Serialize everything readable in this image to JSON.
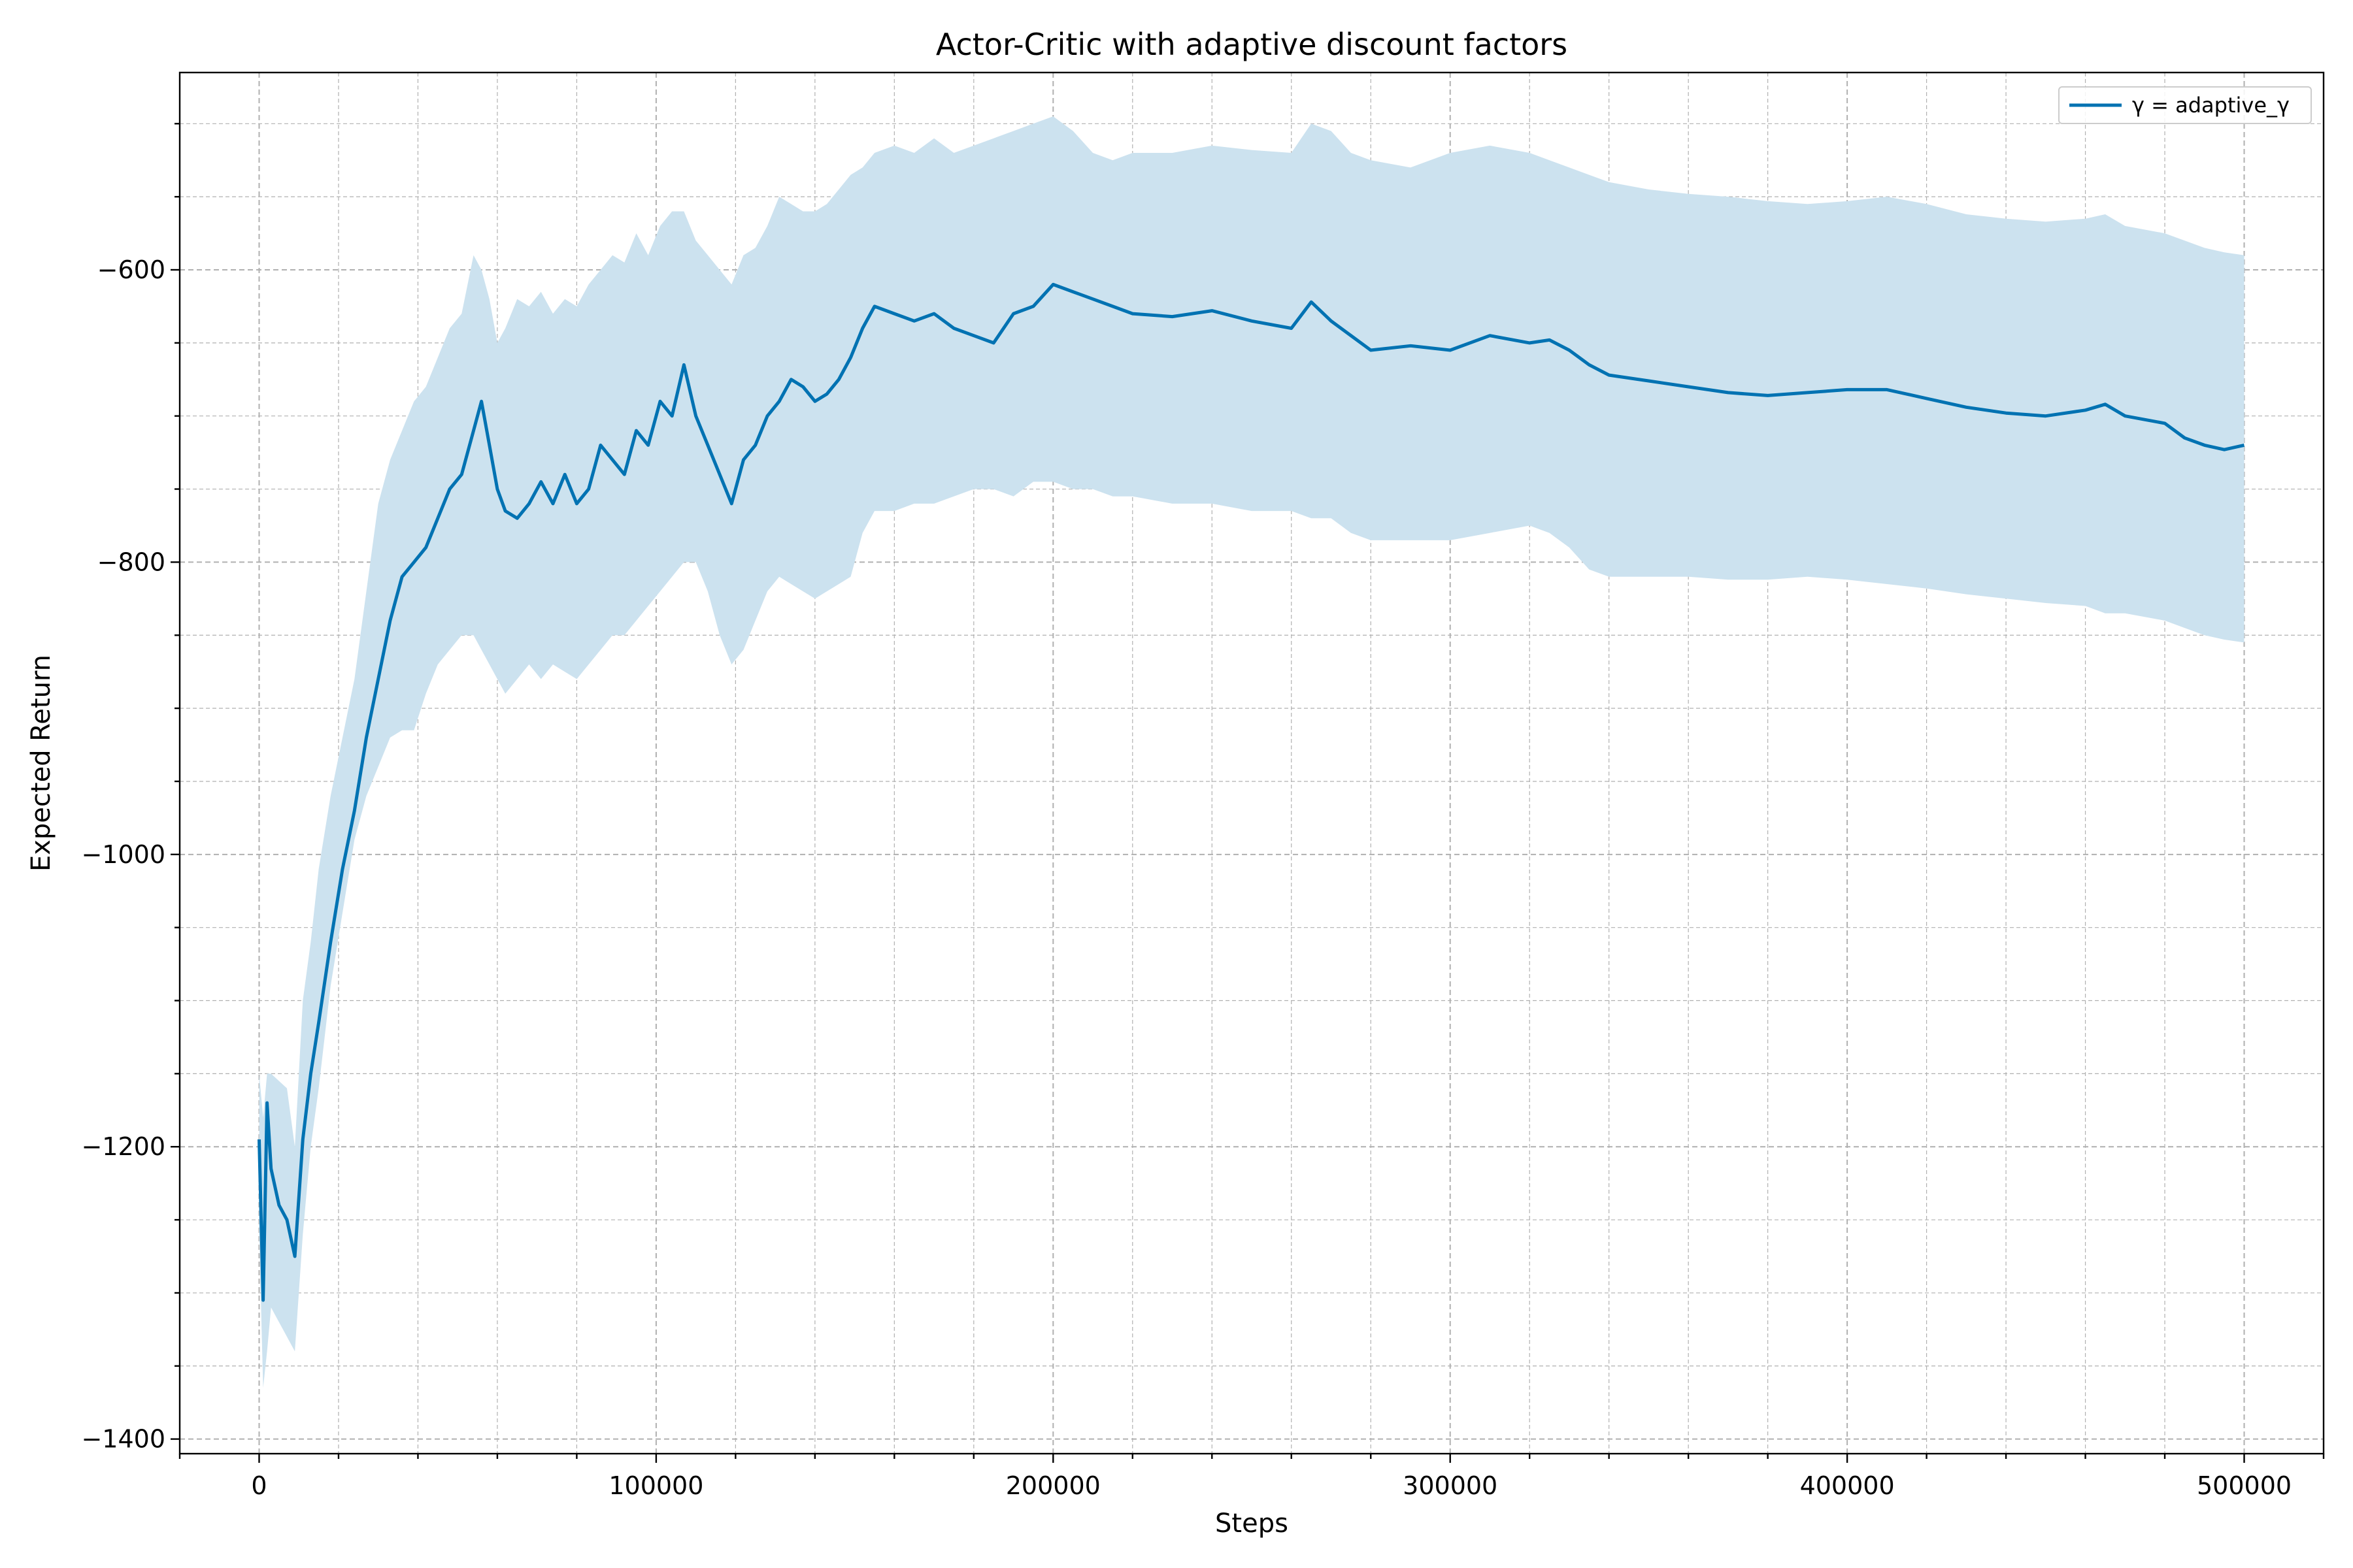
{
  "chart_data": {
    "type": "line",
    "title": "Actor-Critic with adaptive discount factors",
    "xlabel": "Steps",
    "ylabel": "Expected Return",
    "xlim": [
      -20000,
      520000
    ],
    "ylim": [
      -1410,
      -465
    ],
    "xticks": [
      0,
      100000,
      200000,
      300000,
      400000,
      500000
    ],
    "xtick_labels": [
      "0",
      "100000",
      "200000",
      "300000",
      "400000",
      "500000"
    ],
    "yticks": [
      -1400,
      -1200,
      -1000,
      -800,
      -600
    ],
    "ytick_labels": [
      "−1400",
      "−1200",
      "−1000",
      "−800",
      "−600"
    ],
    "grid": true,
    "minor_grid": true,
    "legend_position": "top-right",
    "colors": {
      "line": "#0072b2",
      "band": "#cce2ef"
    },
    "series": [
      {
        "name": "γ = adaptive_γ",
        "x": [
          0,
          1000,
          2000,
          3000,
          5000,
          7000,
          9000,
          11000,
          13000,
          15000,
          18000,
          21000,
          24000,
          27000,
          30000,
          33000,
          36000,
          39000,
          42000,
          45000,
          48000,
          51000,
          54000,
          56000,
          58000,
          60000,
          62000,
          65000,
          68000,
          71000,
          74000,
          77000,
          80000,
          83000,
          86000,
          89000,
          92000,
          95000,
          98000,
          101000,
          104000,
          107000,
          110000,
          113000,
          116000,
          119000,
          122000,
          125000,
          128000,
          131000,
          134000,
          137000,
          140000,
          143000,
          146000,
          149000,
          152000,
          155000,
          160000,
          165000,
          170000,
          175000,
          180000,
          185000,
          190000,
          195000,
          200000,
          205000,
          210000,
          215000,
          220000,
          230000,
          240000,
          250000,
          260000,
          265000,
          270000,
          275000,
          280000,
          290000,
          300000,
          310000,
          320000,
          325000,
          330000,
          335000,
          340000,
          350000,
          360000,
          370000,
          380000,
          390000,
          400000,
          410000,
          420000,
          430000,
          440000,
          450000,
          460000,
          465000,
          470000,
          480000,
          485000,
          490000,
          495000,
          500000
        ],
        "y": [
          -1195,
          -1305,
          -1170,
          -1215,
          -1240,
          -1250,
          -1275,
          -1195,
          -1150,
          -1115,
          -1060,
          -1010,
          -970,
          -920,
          -880,
          -840,
          -810,
          -800,
          -790,
          -770,
          -750,
          -740,
          -710,
          -690,
          -720,
          -750,
          -765,
          -770,
          -760,
          -745,
          -760,
          -740,
          -760,
          -750,
          -720,
          -730,
          -740,
          -710,
          -720,
          -690,
          -700,
          -665,
          -700,
          -720,
          -740,
          -760,
          -730,
          -720,
          -700,
          -690,
          -675,
          -680,
          -690,
          -685,
          -675,
          -660,
          -640,
          -625,
          -630,
          -635,
          -630,
          -640,
          -645,
          -650,
          -630,
          -625,
          -610,
          -615,
          -620,
          -625,
          -630,
          -632,
          -628,
          -635,
          -640,
          -622,
          -635,
          -645,
          -655,
          -652,
          -655,
          -645,
          -650,
          -648,
          -655,
          -665,
          -672,
          -676,
          -680,
          -684,
          -686,
          -684,
          -682,
          -682,
          -688,
          -694,
          -698,
          -700,
          -696,
          -692,
          -700,
          -705,
          -715,
          -720,
          -723,
          -720
        ],
        "lower": [
          -1260,
          -1365,
          -1340,
          -1310,
          -1320,
          -1330,
          -1340,
          -1260,
          -1200,
          -1160,
          -1090,
          -1040,
          -990,
          -960,
          -940,
          -920,
          -915,
          -915,
          -890,
          -870,
          -860,
          -850,
          -850,
          -860,
          -870,
          -880,
          -890,
          -880,
          -870,
          -880,
          -870,
          -875,
          -880,
          -870,
          -860,
          -850,
          -850,
          -840,
          -830,
          -820,
          -810,
          -800,
          -800,
          -820,
          -850,
          -870,
          -860,
          -840,
          -820,
          -810,
          -815,
          -820,
          -825,
          -820,
          -815,
          -810,
          -780,
          -765,
          -765,
          -760,
          -760,
          -755,
          -750,
          -750,
          -755,
          -745,
          -745,
          -750,
          -750,
          -755,
          -755,
          -760,
          -760,
          -765,
          -765,
          -770,
          -770,
          -780,
          -785,
          -785,
          -785,
          -780,
          -775,
          -780,
          -790,
          -805,
          -810,
          -810,
          -810,
          -812,
          -812,
          -810,
          -812,
          -815,
          -818,
          -822,
          -825,
          -828,
          -830,
          -835,
          -835,
          -840,
          -845,
          -850,
          -853,
          -855
        ],
        "upper": [
          -1150,
          -1180,
          -1150,
          -1150,
          -1155,
          -1160,
          -1200,
          -1100,
          -1060,
          -1010,
          -960,
          -920,
          -880,
          -820,
          -760,
          -730,
          -710,
          -690,
          -680,
          -660,
          -640,
          -630,
          -590,
          -600,
          -620,
          -650,
          -640,
          -620,
          -625,
          -615,
          -630,
          -620,
          -625,
          -610,
          -600,
          -590,
          -595,
          -575,
          -590,
          -570,
          -560,
          -560,
          -580,
          -590,
          -600,
          -610,
          -590,
          -585,
          -570,
          -550,
          -555,
          -560,
          -560,
          -555,
          -545,
          -535,
          -530,
          -520,
          -515,
          -520,
          -510,
          -520,
          -515,
          -510,
          -505,
          -500,
          -495,
          -505,
          -520,
          -525,
          -520,
          -520,
          -515,
          -518,
          -520,
          -500,
          -505,
          -520,
          -525,
          -530,
          -520,
          -515,
          -520,
          -525,
          -530,
          -535,
          -540,
          -545,
          -548,
          -550,
          -553,
          -555,
          -553,
          -550,
          -555,
          -562,
          -565,
          -567,
          -565,
          -562,
          -570,
          -575,
          -580,
          -585,
          -588,
          -590
        ]
      }
    ]
  }
}
